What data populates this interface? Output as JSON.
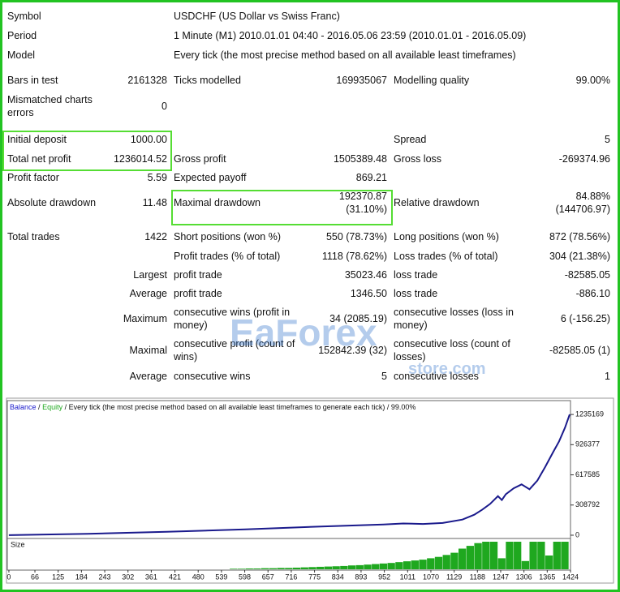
{
  "report": {
    "rows": [
      {
        "label": "Symbol",
        "text": "USDCHF (US Dollar vs Swiss Franc)"
      },
      {
        "label": "Period",
        "text": "1 Minute (M1) 2010.01.01 04:40 - 2016.05.06 23:59 (2010.01.01 - 2016.05.09)"
      },
      {
        "label": "Model",
        "text": "Every tick (the most precise method based on all available least timeframes)"
      },
      {
        "label": "Bars in test",
        "value1": "2161328",
        "label2": "Ticks modelled",
        "value2": "169935067",
        "label3": "Modelling quality",
        "value3": "99.00%"
      },
      {
        "label": "Mismatched charts errors",
        "value1": "0"
      },
      {
        "label": "Initial deposit",
        "value1": "1000.00",
        "label3": "Spread",
        "value3": "5"
      },
      {
        "label": "Total net profit",
        "value1": "1236014.52",
        "label2": "Gross profit",
        "value2": "1505389.48",
        "label3": "Gross loss",
        "value3": "-269374.96"
      },
      {
        "label": "Profit factor",
        "value1": "5.59",
        "label2": "Expected payoff",
        "value2": "869.21"
      },
      {
        "label": "Absolute drawdown",
        "value1": "11.48",
        "label2": "Maximal drawdown",
        "value2": "192370.87 (31.10%)",
        "label3": "Relative drawdown",
        "value3": "84.88% (144706.97)"
      },
      {
        "label": "Total trades",
        "value1": "1422",
        "label2": "Short positions (won %)",
        "value2": "550 (78.73%)",
        "label3": "Long positions (won %)",
        "value3": "872 (78.56%)"
      },
      {
        "label2": "Profit trades (% of total)",
        "value2": "1118 (78.62%)",
        "label3": "Loss trades (% of total)",
        "value3": "304 (21.38%)"
      },
      {
        "prefix": "Largest",
        "label2": "profit trade",
        "value2": "35023.46",
        "label3": "loss trade",
        "value3": "-82585.05"
      },
      {
        "prefix": "Average",
        "label2": "profit trade",
        "value2": "1346.50",
        "label3": "loss trade",
        "value3": "-886.10"
      },
      {
        "prefix": "Maximum",
        "label2": "consecutive wins (profit in money)",
        "value2": "34 (2085.19)",
        "label3": "consecutive losses (loss in money)",
        "value3": "6 (-156.25)"
      },
      {
        "prefix": "Maximal",
        "label2": "consecutive profit (count of wins)",
        "value2": "152842.39 (32)",
        "label3": "consecutive loss (count of losses)",
        "value3": "-82585.05 (1)"
      },
      {
        "prefix": "Average",
        "label2": "consecutive wins",
        "value2": "5",
        "label3": "consecutive losses",
        "value3": "1"
      }
    ]
  },
  "watermark": {
    "brand": "EaForex",
    "site": "store.com"
  },
  "graph": {
    "type": "line",
    "legend": {
      "balance": "Balance",
      "separator": "/",
      "equity": "Equity",
      "model": "Every tick (the most precise method based on all available least timeframes to generate each tick)",
      "quality": "99.00%"
    },
    "xlim": [
      -4,
      1424
    ],
    "xticks": [
      0,
      66,
      125,
      184,
      243,
      302,
      361,
      421,
      480,
      539,
      598,
      657,
      716,
      775,
      834,
      893,
      952,
      1011,
      1070,
      1129,
      1188,
      1247,
      1306,
      1365,
      1424
    ],
    "ylim": [
      -33400,
      1377000
    ],
    "yticks": [
      0,
      308792,
      617585,
      926377,
      1235169
    ],
    "balance": {
      "name": "Balance",
      "color": "#1a1a8c",
      "x": [
        0,
        200,
        400,
        600,
        800,
        950,
        1000,
        1050,
        1100,
        1150,
        1180,
        1200,
        1220,
        1240,
        1250,
        1260,
        1280,
        1300,
        1320,
        1340,
        1360,
        1380,
        1395,
        1410,
        1422
      ],
      "values": [
        1000,
        15000,
        35000,
        60000,
        90000,
        110000,
        120000,
        115000,
        125000,
        160000,
        210000,
        260000,
        320000,
        400000,
        360000,
        420000,
        480000,
        520000,
        470000,
        560000,
        700000,
        850000,
        960000,
        1100000,
        1236014
      ]
    },
    "size": {
      "label": "Size",
      "color": "#1fa81f",
      "x": [
        580,
        600,
        620,
        640,
        660,
        680,
        700,
        720,
        740,
        760,
        780,
        800,
        820,
        840,
        860,
        880,
        900,
        920,
        940,
        960,
        980,
        1000,
        1020,
        1040,
        1060,
        1080,
        1100,
        1120,
        1140,
        1160,
        1180,
        1200,
        1220,
        1240,
        1260,
        1280,
        1300,
        1320,
        1340,
        1360,
        1380,
        1400,
        1420
      ],
      "values": [
        0.2,
        0.2,
        0.3,
        0.3,
        0.4,
        0.4,
        0.5,
        0.5,
        0.6,
        0.7,
        0.8,
        0.9,
        1,
        1.1,
        1.2,
        1.4,
        1.5,
        1.7,
        1.9,
        2.1,
        2.3,
        2.6,
        2.9,
        3.2,
        3.5,
        4,
        4.5,
        5.2,
        6,
        7.5,
        8.5,
        9.5,
        10,
        10,
        4,
        10,
        10,
        3,
        10,
        10,
        5,
        10,
        10
      ]
    }
  }
}
